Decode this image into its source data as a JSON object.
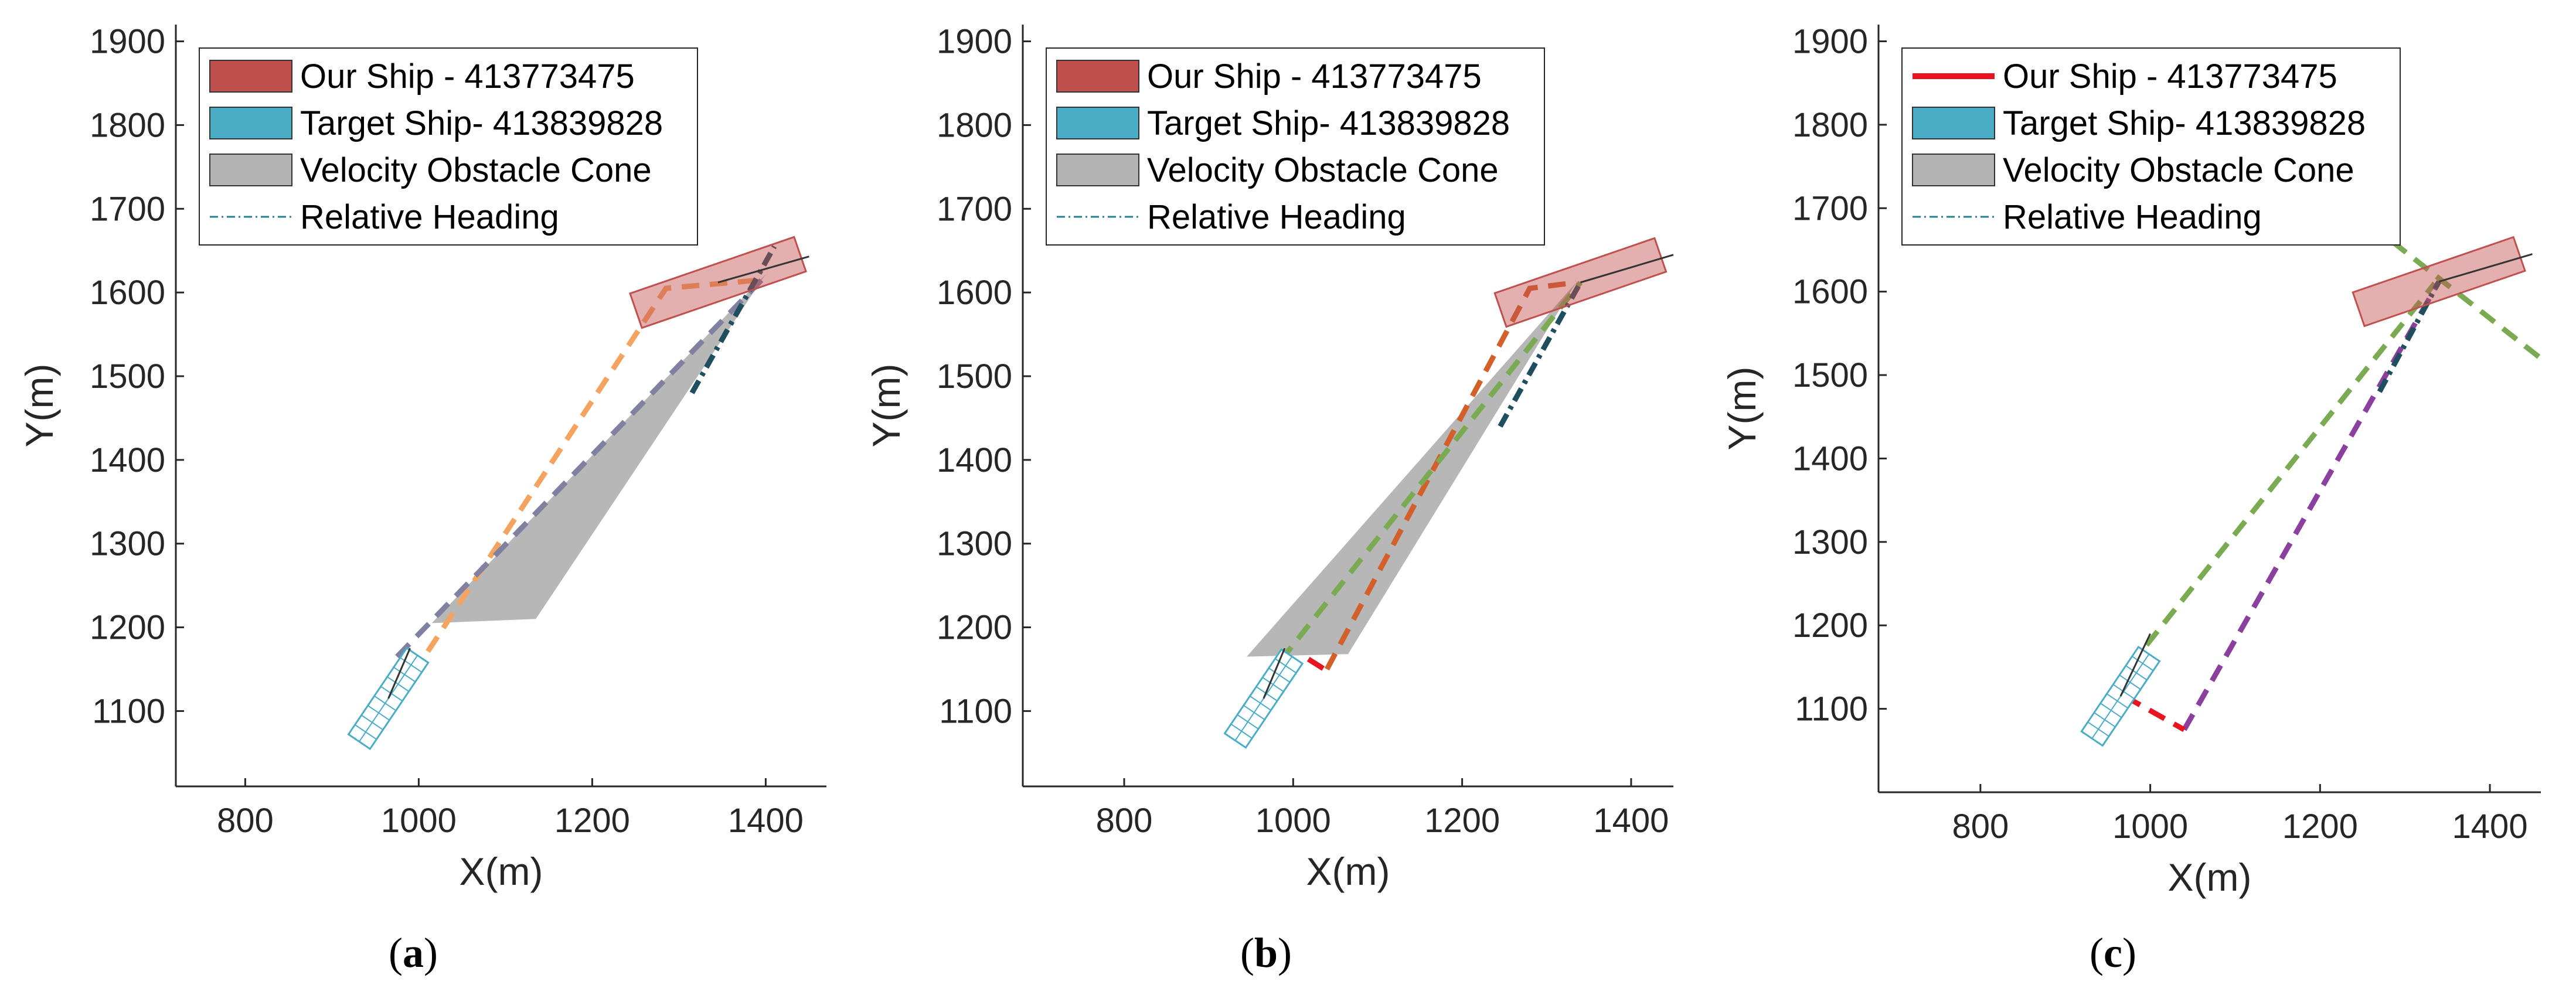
{
  "panels": [
    {
      "label": "a",
      "legend": [
        {
          "text": "Our Ship - 413773475",
          "kind": "patch",
          "color": "#c0504d"
        },
        {
          "text": "Target Ship- 413839828",
          "kind": "patch",
          "color": "#4bacc6"
        },
        {
          "text": "Velocity Obstacle Cone",
          "kind": "patch",
          "color": "#b3b3b3"
        },
        {
          "text": "Relative Heading",
          "kind": "dashdot",
          "color": "#2a7f8f"
        }
      ],
      "chart_data": {
        "type": "line",
        "xlabel": "X(m)",
        "ylabel": "Y(m)",
        "xlim": [
          720,
          1470
        ],
        "ylim": [
          1010,
          1920
        ],
        "xticks": [
          800,
          1000,
          1200,
          1400
        ],
        "yticks": [
          1100,
          1200,
          1300,
          1400,
          1500,
          1600,
          1700,
          1800,
          1900
        ],
        "grid": false,
        "legend_position": "top-left",
        "our_ship": {
          "x": 1345,
          "y": 1612,
          "heading_deg": 19,
          "color": "#c0504d"
        },
        "target_ship": {
          "x": 965,
          "y": 1115,
          "heading_deg": 56,
          "color": "#4bacc6"
        },
        "heading_lines": [
          {
            "kind": "solid",
            "color": "#333333",
            "points": [
              [
                1345,
                1612
              ],
              [
                1450,
                1643
              ]
            ]
          },
          {
            "kind": "solid",
            "color": "#333333",
            "points": [
              [
                965,
                1115
              ],
              [
                990,
                1175
              ]
            ]
          }
        ],
        "cone": {
          "color": "#b3b3b3",
          "points": [
            [
              1400,
              1622
            ],
            [
              1015,
              1205
            ],
            [
              1135,
              1210
            ]
          ]
        },
        "series": [
          {
            "color": "#f4a460",
            "style": "dashed",
            "points": [
              [
                975,
                1115
              ],
              [
                1285,
                1605
              ],
              [
                1395,
                1615
              ]
            ]
          },
          {
            "color": "#8080a0",
            "style": "dashed",
            "points": [
              [
                975,
                1165
              ],
              [
                1400,
                1620
              ]
            ]
          },
          {
            "color": "#1f4e5f",
            "style": "dashdot",
            "points": [
              [
                1315,
                1480
              ],
              [
                1410,
                1655
              ]
            ]
          }
        ]
      }
    },
    {
      "label": "b",
      "legend": [
        {
          "text": "Our Ship - 413773475",
          "kind": "patch",
          "color": "#c0504d"
        },
        {
          "text": "Target Ship- 413839828",
          "kind": "patch",
          "color": "#4bacc6"
        },
        {
          "text": "Velocity Obstacle Cone",
          "kind": "patch",
          "color": "#b3b3b3"
        },
        {
          "text": "Relative Heading",
          "kind": "dashdot",
          "color": "#2a7f8f"
        }
      ],
      "chart_data": {
        "type": "line",
        "xlabel": "X(m)",
        "ylabel": "Y(m)",
        "xlim": [
          680,
          1450
        ],
        "ylim": [
          1010,
          1920
        ],
        "xticks": [
          800,
          1000,
          1200,
          1400
        ],
        "yticks": [
          1100,
          1200,
          1300,
          1400,
          1500,
          1600,
          1700,
          1800,
          1900
        ],
        "grid": false,
        "legend_position": "top-left",
        "our_ship": {
          "x": 1340,
          "y": 1612,
          "heading_deg": 19,
          "color": "#c0504d"
        },
        "target_ship": {
          "x": 965,
          "y": 1115,
          "heading_deg": 56,
          "color": "#4bacc6"
        },
        "heading_lines": [
          {
            "kind": "solid",
            "color": "#333333",
            "points": [
              [
                1340,
                1612
              ],
              [
                1450,
                1645
              ]
            ]
          },
          {
            "kind": "solid",
            "color": "#333333",
            "points": [
              [
                965,
                1115
              ],
              [
                990,
                1175
              ]
            ]
          }
        ],
        "cone": {
          "color": "#b3b3b3",
          "points": [
            [
              1335,
              1612
            ],
            [
              945,
              1165
            ],
            [
              1065,
              1168
            ]
          ]
        },
        "series": [
          {
            "color": "#d35f2a",
            "style": "dashed",
            "points": [
              [
                1040,
                1150
              ],
              [
                1280,
                1605
              ],
              [
                1335,
                1612
              ]
            ]
          },
          {
            "color": "#7aaa52",
            "style": "dashed",
            "points": [
              [
                985,
                1160
              ],
              [
                1340,
                1612
              ]
            ]
          },
          {
            "color": "#e8141f",
            "style": "dashed",
            "points": [
              [
                1018,
                1162
              ],
              [
                1040,
                1148
              ]
            ]
          },
          {
            "color": "#1f4e5f",
            "style": "dashdot",
            "points": [
              [
                1245,
                1440
              ],
              [
                1340,
                1612
              ]
            ]
          }
        ]
      }
    },
    {
      "label": "c",
      "legend": [
        {
          "text": "Our Ship - 413773475",
          "kind": "line",
          "color": "#e8141f"
        },
        {
          "text": "Target Ship- 413839828",
          "kind": "patch",
          "color": "#4bacc6"
        },
        {
          "text": "Velocity Obstacle Cone",
          "kind": "patch",
          "color": "#b3b3b3"
        },
        {
          "text": "Relative Heading",
          "kind": "dashdot",
          "color": "#2a7f8f"
        }
      ],
      "chart_data": {
        "type": "line",
        "xlabel": "X(m)",
        "ylabel": "Y(m)",
        "xlim": [
          680,
          1460
        ],
        "ylim": [
          1000,
          1920
        ],
        "xticks": [
          800,
          1000,
          1200,
          1400
        ],
        "yticks": [
          1100,
          1200,
          1300,
          1400,
          1500,
          1600,
          1700,
          1800,
          1900
        ],
        "grid": false,
        "legend_position": "top-left",
        "our_ship": {
          "x": 1340,
          "y": 1612,
          "heading_deg": 19,
          "color": "#c0504d"
        },
        "target_ship": {
          "x": 965,
          "y": 1115,
          "heading_deg": 56,
          "color": "#4bacc6"
        },
        "heading_lines": [
          {
            "kind": "solid",
            "color": "#333333",
            "points": [
              [
                1340,
                1612
              ],
              [
                1450,
                1645
              ]
            ]
          },
          {
            "kind": "solid",
            "color": "#333333",
            "points": [
              [
                965,
                1115
              ],
              [
                1000,
                1190
              ]
            ]
          }
        ],
        "cone": null,
        "series": [
          {
            "color": "#7aaa52",
            "style": "dashed",
            "points": [
              [
                975,
                1150
              ],
              [
                1335,
                1610
              ]
            ]
          },
          {
            "color": "#7aaa52",
            "style": "dashed",
            "points": [
              [
                1285,
                1660
              ],
              [
                1460,
                1520
              ]
            ]
          },
          {
            "color": "#8b3f9e",
            "style": "dashed",
            "points": [
              [
                1040,
                1075
              ],
              [
                1340,
                1612
              ]
            ]
          },
          {
            "color": "#e8141f",
            "style": "dashed",
            "points": [
              [
                970,
                1115
              ],
              [
                1040,
                1075
              ]
            ]
          },
          {
            "color": "#1f4e5f",
            "style": "dashdot",
            "points": [
              [
                1270,
                1480
              ],
              [
                1340,
                1612
              ]
            ]
          }
        ]
      }
    }
  ]
}
